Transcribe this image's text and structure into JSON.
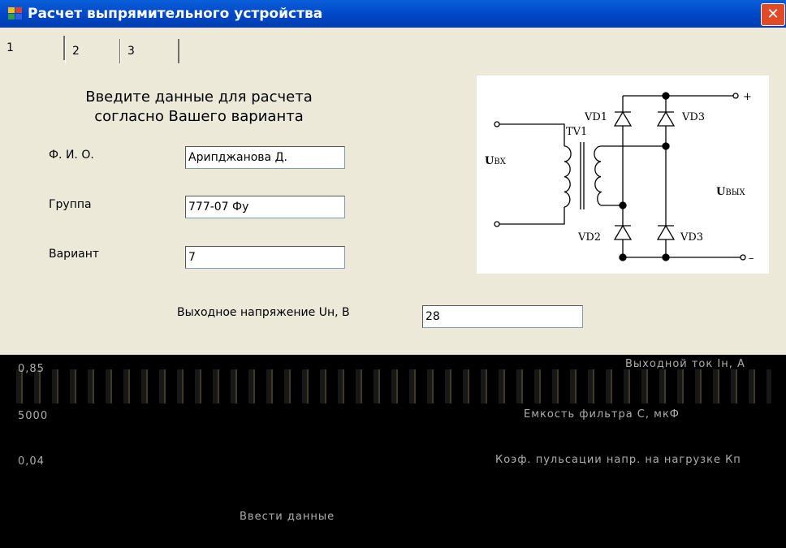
{
  "window": {
    "title": "Расчет выпрямительного устройства"
  },
  "tabs": [
    "1",
    "2",
    "3"
  ],
  "form": {
    "heading": [
      "Введите данные для расчета",
      "согласно Вашего варианта"
    ],
    "fields": [
      {
        "label": "Ф. И. О.",
        "value": "Арипджанова Д."
      },
      {
        "label": "Группа",
        "value": "777-07 Фу"
      },
      {
        "label": "Вариант",
        "value": "7"
      }
    ],
    "output_voltage": {
      "label": "Выходное напряжение Uн, В",
      "value": "28"
    }
  },
  "diagram": {
    "labels": {
      "vd1": "VD1",
      "vd3_top": "VD3",
      "tv1": "TV1",
      "u_in": "U",
      "u_in_sub": "BX",
      "u_out": "U",
      "u_out_sub": "ВЫХ",
      "vd2": "VD2",
      "vd3_bottom": "VD3",
      "plus": "+",
      "minus": "–"
    }
  },
  "corrupted_area": {
    "values": [
      "0,85",
      "5000",
      "0,04"
    ],
    "labels": [
      "Выходной ток Iн, А",
      "Емкость фильтра С, мкФ",
      "Коэф. пульсации напр. на нагрузке Кп"
    ],
    "button": "Ввести данные"
  }
}
